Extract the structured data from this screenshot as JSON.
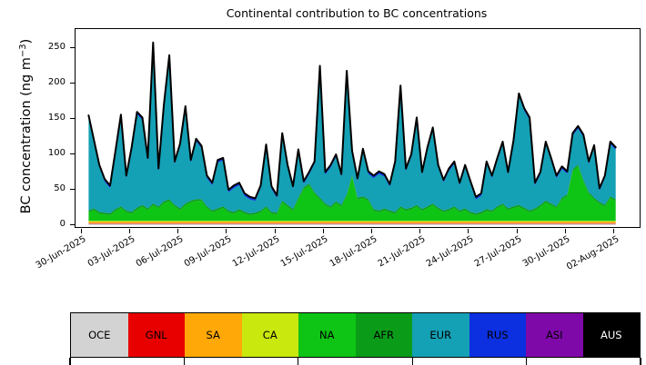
{
  "title": "Continental contribution to BC concentrations",
  "axes": {
    "ylabel_pre": "BC concentration (ng m",
    "ylabel_sup": "−3",
    "ylabel_post": ")",
    "yticks": [
      0,
      50,
      100,
      150,
      200,
      250
    ],
    "xtick_labels": [
      "30-Jun-2025",
      "03-Jul-2025",
      "06-Jul-2025",
      "09-Jul-2025",
      "12-Jul-2025",
      "15-Jul-2025",
      "18-Jul-2025",
      "21-Jul-2025",
      "24-Jul-2025",
      "27-Jul-2025",
      "30-Jul-2025",
      "02-Aug-2025"
    ]
  },
  "legend": {
    "entries": [
      {
        "label": "OCE",
        "color": "#d3d3d3",
        "text_color": "#000000"
      },
      {
        "label": "GNL",
        "color": "#e80000",
        "text_color": "#000000"
      },
      {
        "label": "SA",
        "color": "#ffa808",
        "text_color": "#000000"
      },
      {
        "label": "CA",
        "color": "#c9e80e",
        "text_color": "#000000"
      },
      {
        "label": "NA",
        "color": "#0ec414",
        "text_color": "#000000"
      },
      {
        "label": "AFR",
        "color": "#0a9c19",
        "text_color": "#000000"
      },
      {
        "label": "EUR",
        "color": "#14a0b5",
        "text_color": "#000000"
      },
      {
        "label": "RUS",
        "color": "#0c2fe0",
        "text_color": "#000000"
      },
      {
        "label": "ASI",
        "color": "#7e09a8",
        "text_color": "#000000"
      },
      {
        "label": "AUS",
        "color": "#000000",
        "text_color": "#ffffff"
      }
    ]
  },
  "chart_data": {
    "type": "area",
    "stacked": true,
    "title": "Continental contribution to BC concentrations",
    "xlabel": "",
    "ylabel": "BC concentration (ng m^-3)",
    "x_unit": "days since 30-Jun-2025 00:00",
    "x_start": 0.4,
    "x_step": 0.33333,
    "n_points": 99,
    "xlim_days": [
      -0.41,
      34.56
    ],
    "ylim": [
      0,
      275
    ],
    "grid": false,
    "legend_position": "bottom colorbar strip",
    "yticks": [
      0,
      50,
      100,
      150,
      200,
      250
    ],
    "xtick_labels": [
      "30-Jun-2025",
      "03-Jul-2025",
      "06-Jul-2025",
      "09-Jul-2025",
      "12-Jul-2025",
      "15-Jul-2025",
      "18-Jul-2025",
      "21-Jul-2025",
      "24-Jul-2025",
      "27-Jul-2025",
      "30-Jul-2025",
      "02-Aug-2025"
    ],
    "stack_order": [
      "OCE",
      "GNL",
      "SA",
      "CA",
      "NA",
      "AFR",
      "EUR",
      "RUS",
      "ASI",
      "AUS"
    ],
    "series": [
      {
        "name": "OCE",
        "constant": 2
      },
      {
        "name": "GNL",
        "constant": 0.8
      },
      {
        "name": "SA",
        "constant": 2.2
      },
      {
        "name": "CA",
        "constant": 1.2
      },
      {
        "name": "NA",
        "values": [
          12,
          15,
          10,
          9,
          8,
          14,
          18,
          12,
          10,
          16,
          20,
          15,
          22,
          18,
          25,
          28,
          20,
          15,
          22,
          26,
          28,
          28,
          18,
          12,
          15,
          18,
          12,
          10,
          14,
          10,
          8,
          9,
          12,
          18,
          10,
          9,
          26,
          20,
          14,
          30,
          45,
          50,
          38,
          30,
          22,
          18,
          25,
          20,
          35,
          62,
          30,
          32,
          28,
          14,
          12,
          15,
          12,
          10,
          18,
          14,
          16,
          20,
          14,
          18,
          22,
          16,
          12,
          14,
          18,
          12,
          15,
          10,
          8,
          10,
          14,
          12,
          18,
          22,
          15,
          18,
          20,
          16,
          12,
          15,
          20,
          26,
          22,
          18,
          30,
          35,
          70,
          77,
          55,
          38,
          30,
          24,
          20,
          32,
          28
        ]
      },
      {
        "name": "AFR",
        "constant": 2.5
      },
      {
        "name": "EUR",
        "residual_of_total": true
      },
      {
        "name": "RUS",
        "constant": 2.5
      },
      {
        "name": "ASI",
        "constant": 0.8
      },
      {
        "name": "AUS",
        "constant": 0.3
      }
    ],
    "total_line": {
      "color": "#000000",
      "values": [
        155,
        120,
        85,
        65,
        56,
        105,
        156,
        70,
        110,
        160,
        152,
        95,
        258,
        80,
        170,
        240,
        90,
        115,
        168,
        92,
        122,
        112,
        70,
        60,
        92,
        95,
        50,
        56,
        60,
        45,
        40,
        38,
        56,
        114,
        55,
        42,
        130,
        85,
        55,
        107,
        62,
        75,
        90,
        225,
        75,
        85,
        100,
        72,
        218,
        105,
        66,
        108,
        76,
        70,
        76,
        72,
        58,
        90,
        197,
        80,
        100,
        152,
        75,
        110,
        138,
        85,
        64,
        80,
        90,
        60,
        85,
        62,
        40,
        45,
        90,
        70,
        95,
        118,
        75,
        120,
        186,
        165,
        152,
        60,
        75,
        118,
        95,
        70,
        83,
        76,
        130,
        140,
        128,
        90,
        113,
        52,
        70,
        118,
        110
      ]
    }
  }
}
